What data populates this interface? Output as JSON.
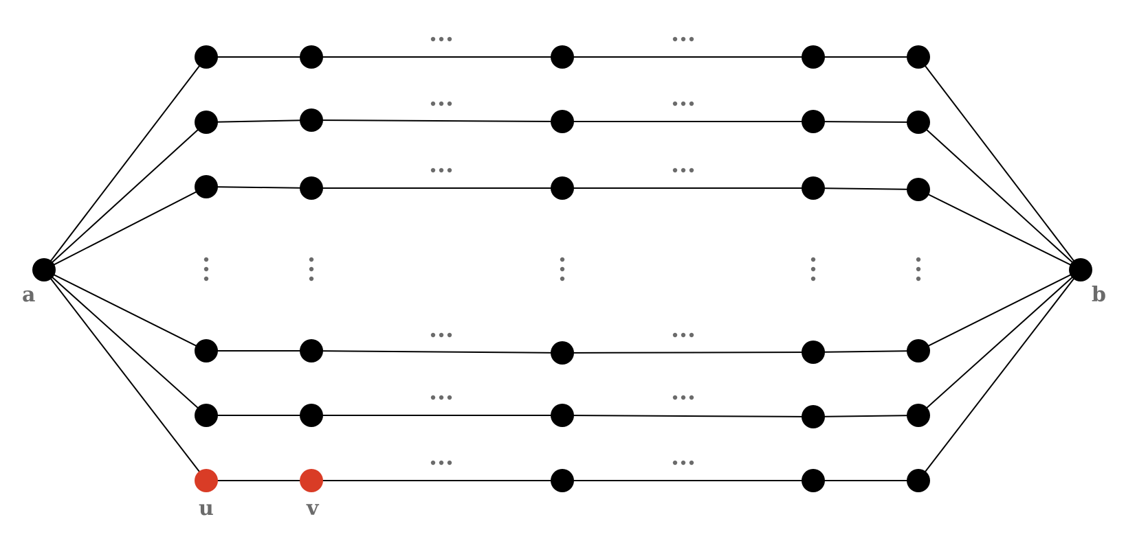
{
  "diagram": {
    "type": "graph",
    "colors": {
      "node": "#000000",
      "highlight": "#d93c26",
      "edge": "#000000",
      "label": "#6b6b6b",
      "ellipsis": "#6b6b6b"
    },
    "source_label": "a",
    "target_label": "b",
    "highlight_labels": [
      "u",
      "v"
    ],
    "paths_shown": 6,
    "path_rows_above_ellipsis": 3,
    "path_rows_below_ellipsis": 3,
    "highlighted_nodes": [
      {
        "path": 6,
        "position": 1,
        "label": "u"
      },
      {
        "path": 6,
        "position": 2,
        "label": "v"
      }
    ]
  }
}
